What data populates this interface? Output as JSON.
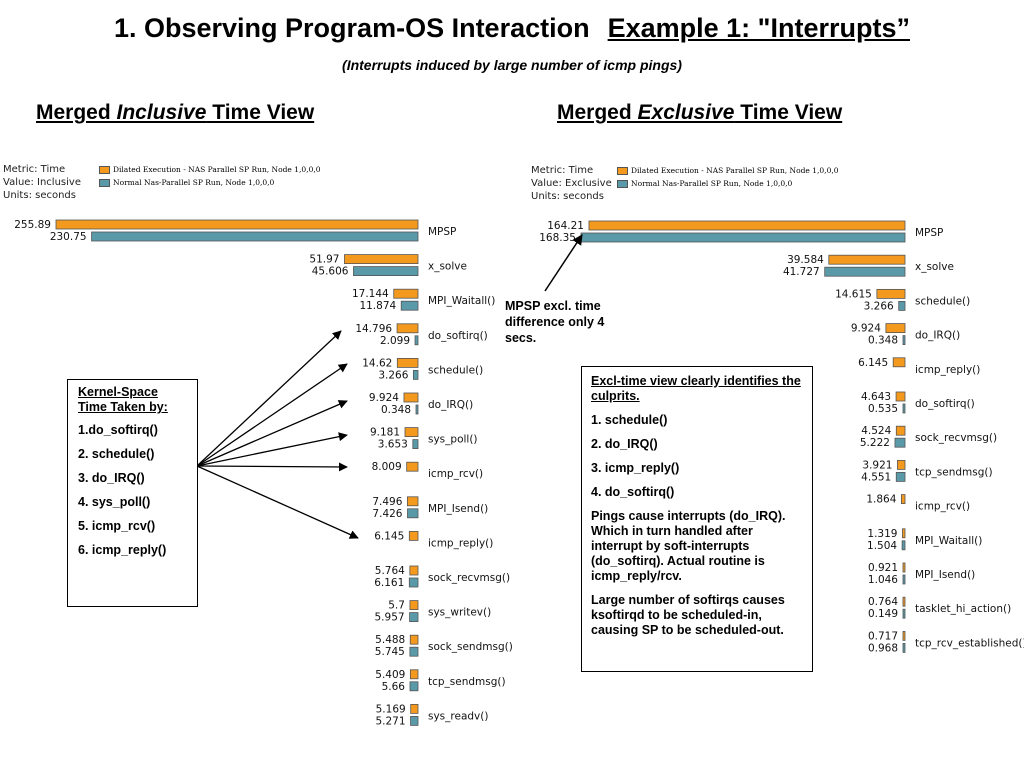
{
  "title": {
    "main": "1. Observing Program-OS Interaction",
    "example": "Example 1: \"Interrupts”",
    "subtitle": "(Interrupts induced by large number of icmp pings)"
  },
  "views": {
    "left": {
      "pre": "Merged ",
      "italic": "Inclusive",
      "post": " Time View"
    },
    "right": {
      "pre": "Merged ",
      "italic": "Exclusive",
      "post": " Time View"
    }
  },
  "legend": {
    "left": {
      "metric": "Metric: Time",
      "value": "Value: Inclusive",
      "units": "Units: seconds"
    },
    "right": {
      "metric": "Metric: Time",
      "value": "Value: Exclusive",
      "units": "Units: seconds"
    },
    "series": [
      {
        "name": "Dilated Execution - NAS Parallel SP Run, Node 1,0,0,0",
        "color": "#f39a1e"
      },
      {
        "name": "Normal Nas-Parallel SP Run, Node 1,0,0,0",
        "color": "#5a9aa8"
      }
    ]
  },
  "chart_data": [
    {
      "type": "bar",
      "title": "Merged Inclusive Time View",
      "orientation": "horizontal",
      "units": "seconds",
      "categories": [
        "MPSP",
        "x_solve",
        "MPI_Waitall()",
        "do_softirq()",
        "schedule()",
        "do_IRQ()",
        "sys_poll()",
        "icmp_rcv()",
        "MPI_Isend()",
        "icmp_reply()",
        "sock_recvmsg()",
        "sys_writev()",
        "sock_sendmsg()",
        "tcp_sendmsg()",
        "sys_readv()"
      ],
      "series": [
        {
          "name": "Dilated Execution - NAS Parallel SP Run, Node 1,0,0,0",
          "values": [
            255.89,
            51.97,
            17.144,
            14.796,
            14.62,
            9.924,
            9.181,
            8.009,
            7.496,
            6.145,
            5.764,
            5.7,
            5.488,
            5.409,
            5.169
          ],
          "labels": [
            "255.89",
            "51.97",
            "17.144",
            "14.796",
            "14.62",
            "9.924",
            "9.181",
            "8.009",
            "7.496",
            "6.145",
            "5.764",
            "5.7",
            "5.488",
            "5.409",
            "5.169"
          ]
        },
        {
          "name": "Normal Nas-Parallel SP Run, Node 1,0,0,0",
          "values": [
            230.75,
            45.606,
            11.874,
            2.099,
            3.266,
            0.348,
            3.653,
            null,
            7.426,
            null,
            6.161,
            5.957,
            5.745,
            5.66,
            5.271
          ],
          "labels": [
            "230.75",
            "45.606",
            "11.874",
            "2.099",
            "3.266",
            "0.348",
            "3.653",
            null,
            "7.426",
            null,
            "6.161",
            "5.957",
            "5.745",
            "5.66",
            "5.271"
          ]
        }
      ]
    },
    {
      "type": "bar",
      "title": "Merged Exclusive Time View",
      "orientation": "horizontal",
      "units": "seconds",
      "categories": [
        "MPSP",
        "x_solve",
        "schedule()",
        "do_IRQ()",
        "icmp_reply()",
        "do_softirq()",
        "sock_recvmsg()",
        "tcp_sendmsg()",
        "icmp_rcv()",
        "MPI_Waitall()",
        "MPI_Isend()",
        "tasklet_hi_action()",
        "tcp_rcv_established()"
      ],
      "series": [
        {
          "name": "Dilated Execution - NAS Parallel SP Run, Node 1,0,0,0",
          "values": [
            164.21,
            39.584,
            14.615,
            9.924,
            6.145,
            4.643,
            4.524,
            3.921,
            1.864,
            1.319,
            0.921,
            0.764,
            0.717
          ],
          "labels": [
            "164.21",
            "39.584",
            "14.615",
            "9.924",
            "6.145",
            "4.643",
            "4.524",
            "3.921",
            "1.864",
            "1.319",
            "0.921",
            "0.764",
            "0.717"
          ]
        },
        {
          "name": "Normal Nas-Parallel SP Run, Node 1,0,0,0",
          "values": [
            168.35,
            41.727,
            3.266,
            0.348,
            null,
            0.535,
            5.222,
            4.551,
            null,
            1.504,
            1.046,
            0.149,
            0.968
          ],
          "labels": [
            "168.35",
            "41.727",
            "3.266",
            "0.348",
            null,
            "0.535",
            "5.222",
            "4.551",
            null,
            "1.504",
            "1.046",
            "0.149",
            "0.968"
          ]
        }
      ]
    }
  ],
  "kernel_box": {
    "header": "Kernel-Space Time Taken by:",
    "items": [
      "1.do_softirq()",
      "2. schedule()",
      "3. do_IRQ()",
      "4. sys_poll()",
      "5. icmp_rcv()",
      "6. icmp_reply()"
    ]
  },
  "mpsp_note": "MPSP excl. time difference only 4 secs.",
  "excl_box": {
    "header": "Excl-time view clearly identifies the culprits.",
    "items": [
      "1. schedule()",
      "2. do_IRQ()",
      "3. icmp_reply()",
      "4. do_softirq()"
    ],
    "para1": "Pings cause interrupts (do_IRQ). Which in turn handled after interrupt by soft-interrupts (do_softirq). Actual routine is icmp_reply/rcv.",
    "para2": "Large number of softirqs causes ksoftirqd to be scheduled-in, causing SP to be scheduled-out."
  }
}
